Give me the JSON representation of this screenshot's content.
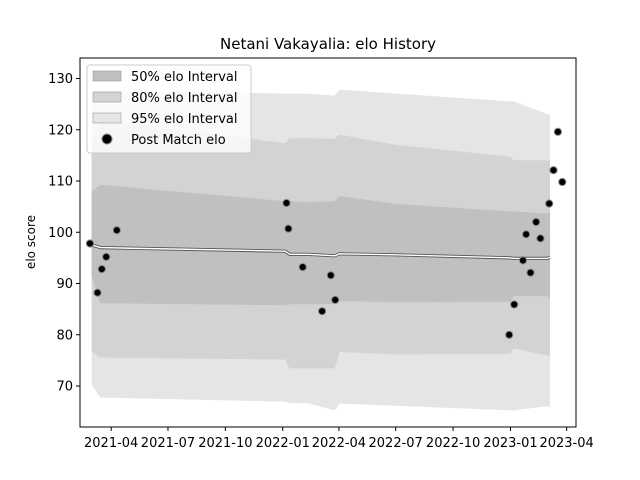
{
  "chart_data": {
    "type": "scatter",
    "title": "Netani Vakayalia: elo History",
    "xlabel": "",
    "ylabel": "elo score",
    "xlim": [
      "2021-02-10",
      "2023-04-16"
    ],
    "ylim": [
      62,
      134
    ],
    "x_ticks": [
      "2021-04",
      "2021-07",
      "2021-10",
      "2022-01",
      "2022-04",
      "2022-07",
      "2022-10",
      "2023-01",
      "2023-04"
    ],
    "y_ticks": [
      70,
      80,
      90,
      100,
      110,
      120,
      130
    ],
    "legend_position": "top-left",
    "legend": {
      "band50": "50% elo Interval",
      "band80": "80% elo Interval",
      "band95": "95% elo Interval",
      "points": "Post Match elo"
    },
    "colors": {
      "band50": "#c0c0c0",
      "band80": "#d3d3d3",
      "band95": "#e5e5e5",
      "mean_line": "#555555",
      "points": "#000000"
    },
    "mean": [
      [
        "2021-03-01",
        97.5
      ],
      [
        "2021-03-15",
        97.0
      ],
      [
        "2022-01-05",
        96.3
      ],
      [
        "2022-01-12",
        95.7
      ],
      [
        "2022-02-10",
        95.7
      ],
      [
        "2022-03-25",
        95.4
      ],
      [
        "2022-04-02",
        95.8
      ],
      [
        "2022-07-01",
        95.6
      ],
      [
        "2023-01-01",
        95.0
      ],
      [
        "2023-01-06",
        94.9
      ],
      [
        "2023-03-01",
        94.9
      ],
      [
        "2023-03-05",
        95.1
      ]
    ],
    "bands": [
      {
        "date": "2021-03-01",
        "p50": [
          91.5,
          108.0
        ],
        "p80": [
          76.7,
          117.8
        ],
        "p95": [
          70.2,
          124.8
        ]
      },
      {
        "date": "2021-03-15",
        "p50": [
          86.2,
          109.2
        ],
        "p80": [
          75.6,
          122.0
        ],
        "p95": [
          67.8,
          127.7
        ]
      },
      {
        "date": "2022-01-05",
        "p50": [
          85.8,
          106.0
        ],
        "p80": [
          75.2,
          117.3
        ],
        "p95": [
          67.0,
          127.0
        ]
      },
      {
        "date": "2022-01-12",
        "p50": [
          86.0,
          106.0
        ],
        "p80": [
          73.5,
          118.3
        ],
        "p95": [
          66.7,
          127.0
        ]
      },
      {
        "date": "2022-02-10",
        "p50": [
          86.0,
          105.8
        ],
        "p80": [
          73.5,
          118.3
        ],
        "p95": [
          66.7,
          127.0
        ]
      },
      {
        "date": "2022-03-25",
        "p50": [
          86.0,
          106.0
        ],
        "p80": [
          73.5,
          118.2
        ],
        "p95": [
          65.3,
          126.6
        ]
      },
      {
        "date": "2022-04-02",
        "p50": [
          86.6,
          107.0
        ],
        "p80": [
          76.7,
          119.0
        ],
        "p95": [
          66.6,
          127.8
        ]
      },
      {
        "date": "2022-07-01",
        "p50": [
          86.4,
          105.5
        ],
        "p80": [
          76.2,
          117.0
        ],
        "p95": [
          66.2,
          127.0
        ]
      },
      {
        "date": "2023-01-01",
        "p50": [
          86.5,
          104.0
        ],
        "p80": [
          76.3,
          114.7
        ],
        "p95": [
          65.3,
          125.5
        ]
      },
      {
        "date": "2023-01-06",
        "p50": [
          87.6,
          104.0
        ],
        "p80": [
          77.4,
          114.0
        ],
        "p95": [
          65.3,
          125.5
        ]
      },
      {
        "date": "2023-03-01",
        "p50": [
          87.6,
          103.6
        ],
        "p80": [
          76.0,
          114.0
        ],
        "p95": [
          66.1,
          123.0
        ]
      },
      {
        "date": "2023-03-05",
        "p50": [
          87.2,
          103.8
        ],
        "p80": [
          75.8,
          114.0
        ],
        "p95": [
          65.9,
          123.0
        ]
      }
    ],
    "points": [
      [
        "2021-02-26",
        97.8
      ],
      [
        "2021-03-10",
        88.2
      ],
      [
        "2021-03-17",
        92.8
      ],
      [
        "2021-03-24",
        95.2
      ],
      [
        "2021-04-10",
        100.4
      ],
      [
        "2022-01-07",
        105.7
      ],
      [
        "2022-01-10",
        100.7
      ],
      [
        "2022-02-02",
        93.2
      ],
      [
        "2022-03-05",
        84.6
      ],
      [
        "2022-03-19",
        91.6
      ],
      [
        "2022-03-26",
        86.8
      ],
      [
        "2022-12-30",
        80.0
      ],
      [
        "2023-01-07",
        85.9
      ],
      [
        "2023-01-21",
        94.5
      ],
      [
        "2023-01-26",
        99.6
      ],
      [
        "2023-02-02",
        92.1
      ],
      [
        "2023-02-11",
        102.0
      ],
      [
        "2023-02-18",
        98.8
      ],
      [
        "2023-03-04",
        105.6
      ],
      [
        "2023-03-11",
        112.1
      ],
      [
        "2023-03-18",
        119.6
      ],
      [
        "2023-03-25",
        109.8
      ]
    ]
  }
}
